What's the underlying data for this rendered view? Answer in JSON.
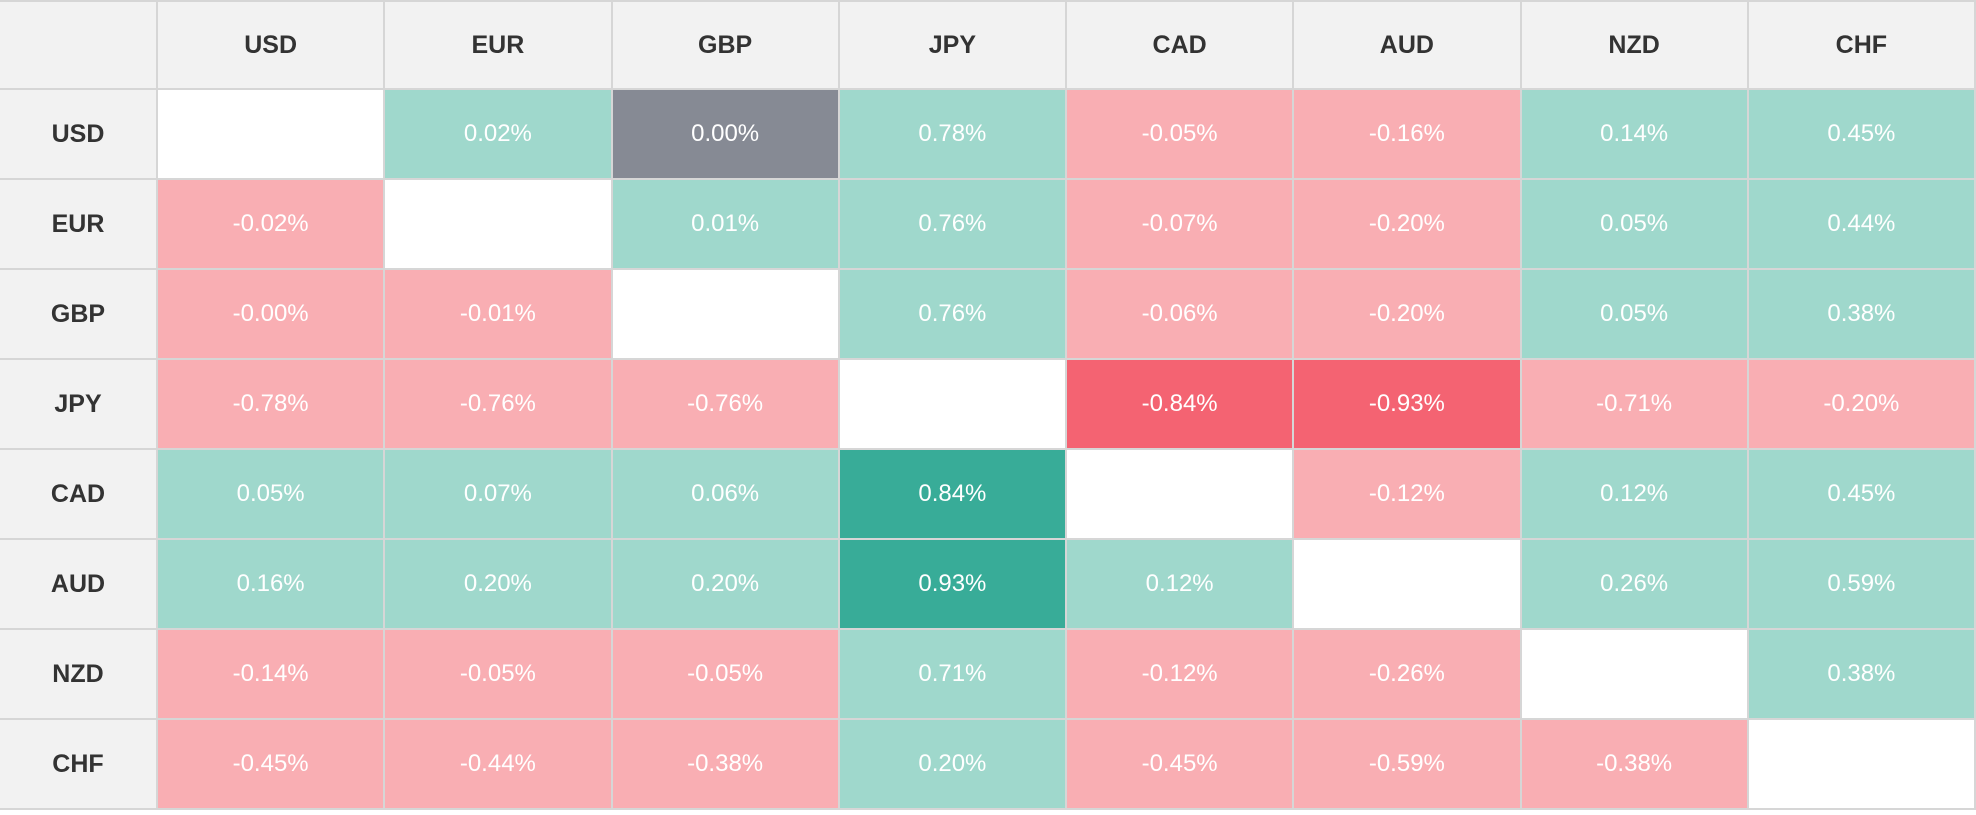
{
  "colors": {
    "header_bg": "#f2f2f2",
    "header_text": "#333333",
    "positive_light": "#9fd8cc",
    "positive_strong": "#38ac98",
    "negative_light": "#f9aeb3",
    "negative_strong": "#f46372",
    "neutral": "#868a94",
    "empty": "#ffffff"
  },
  "chart_data": {
    "type": "heatmap",
    "columns": [
      "USD",
      "EUR",
      "GBP",
      "JPY",
      "CAD",
      "AUD",
      "NZD",
      "CHF"
    ],
    "rows": [
      "USD",
      "EUR",
      "GBP",
      "JPY",
      "CAD",
      "AUD",
      "NZD",
      "CHF"
    ],
    "unit": "%",
    "cells": [
      [
        "",
        "0.02%",
        "0.00%",
        "0.78%",
        "-0.05%",
        "-0.16%",
        "0.14%",
        "0.45%"
      ],
      [
        "-0.02%",
        "",
        "0.01%",
        "0.76%",
        "-0.07%",
        "-0.20%",
        "0.05%",
        "0.44%"
      ],
      [
        "-0.00%",
        "-0.01%",
        "",
        "0.76%",
        "-0.06%",
        "-0.20%",
        "0.05%",
        "0.38%"
      ],
      [
        "-0.78%",
        "-0.76%",
        "-0.76%",
        "",
        "-0.84%",
        "-0.93%",
        "-0.71%",
        "-0.20%"
      ],
      [
        "0.05%",
        "0.07%",
        "0.06%",
        "0.84%",
        "",
        "-0.12%",
        "0.12%",
        "0.45%"
      ],
      [
        "0.16%",
        "0.20%",
        "0.20%",
        "0.93%",
        "0.12%",
        "",
        "0.26%",
        "0.59%"
      ],
      [
        "-0.14%",
        "-0.05%",
        "-0.05%",
        "0.71%",
        "-0.12%",
        "-0.26%",
        "",
        "0.38%"
      ],
      [
        "-0.45%",
        "-0.44%",
        "-0.38%",
        "0.20%",
        "-0.45%",
        "-0.59%",
        "-0.38%",
        ""
      ]
    ]
  }
}
